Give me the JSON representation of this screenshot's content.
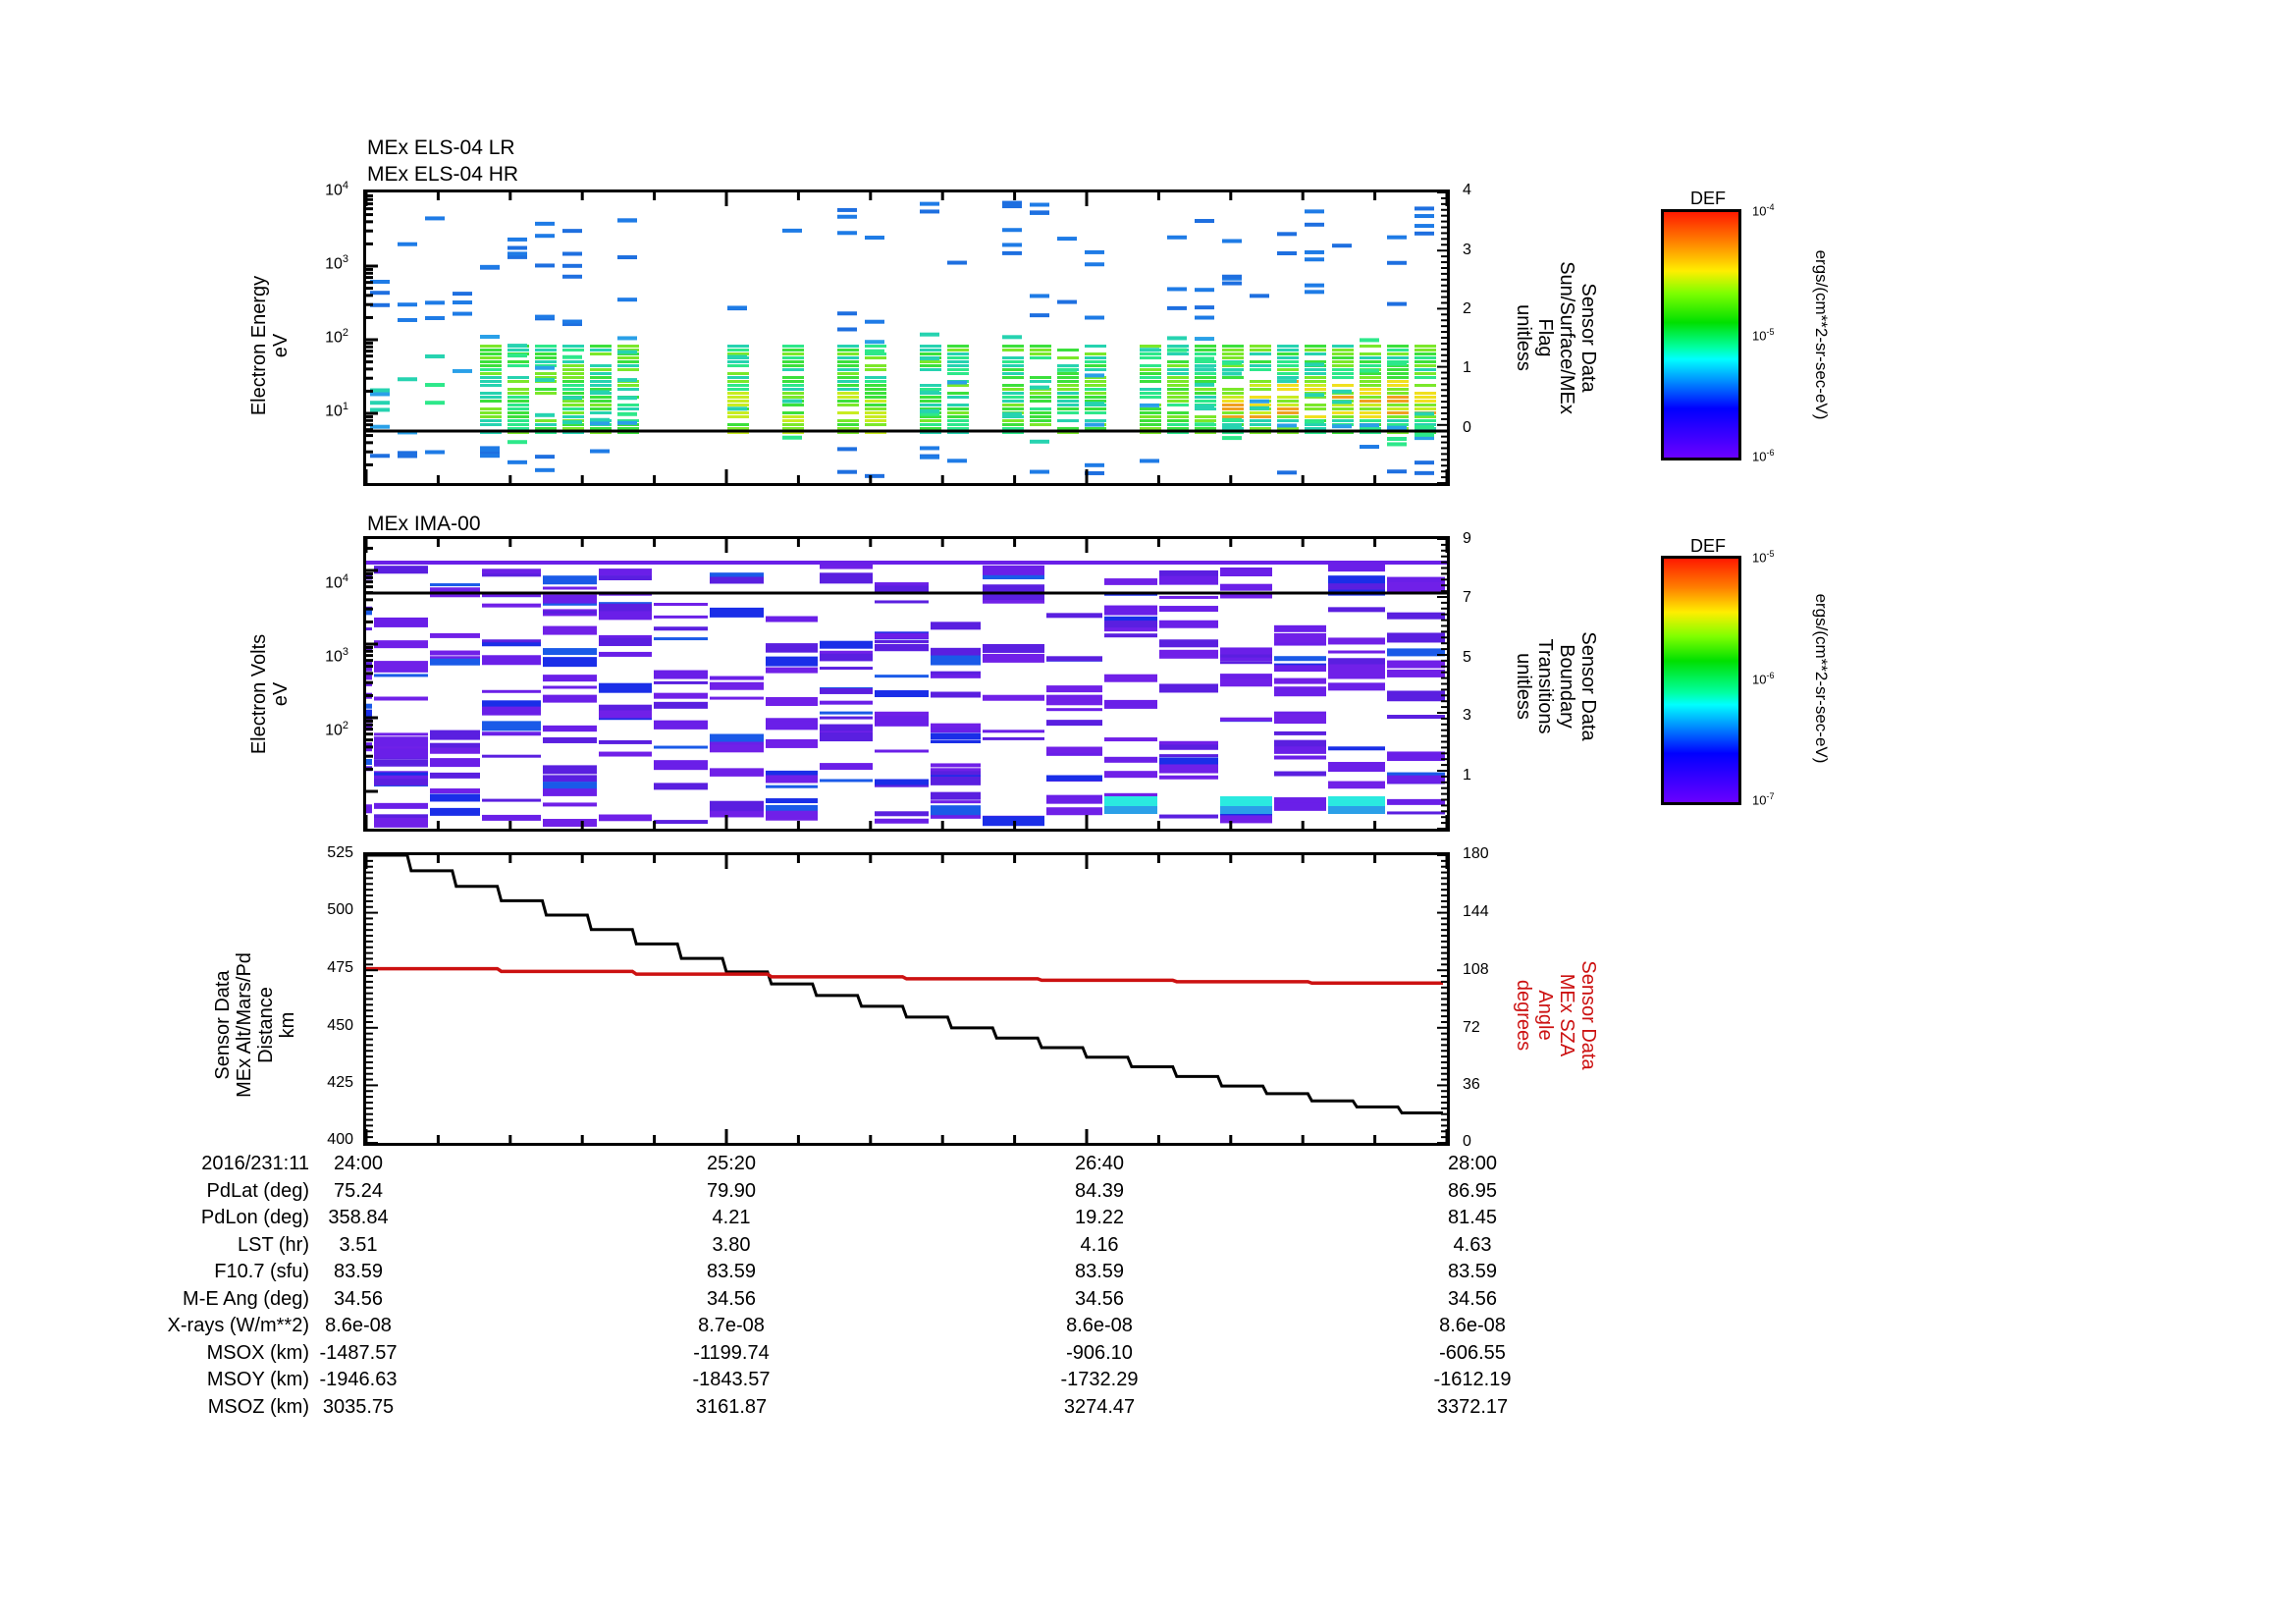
{
  "panels": {
    "els": {
      "title_lines": [
        "MEx ELS-04 LR",
        "MEx ELS-04 HR"
      ],
      "ylabel_lines": [
        "Electron Energy",
        "eV"
      ],
      "yticks": [
        "10^4",
        "10^3",
        "10^2",
        "10^1"
      ],
      "right_ylabel_lines": [
        "Sensor Data",
        "Sun/Surface/MEx",
        "Flag",
        "unitless"
      ],
      "right_yticks": [
        "4",
        "3",
        "2",
        "1",
        "0"
      ],
      "colorbar": {
        "title": "DEF",
        "ticks": [
          "10^-4",
          "10^-5",
          "10^-6"
        ],
        "unit": "ergs/(cm**2-sr-sec-eV)"
      }
    },
    "ima": {
      "title": "MEx IMA-00",
      "ylabel_lines": [
        "Electron Volts",
        "eV"
      ],
      "yticks": [
        "10^4",
        "10^3",
        "10^2"
      ],
      "right_ylabel_lines": [
        "Sensor Data",
        "Boundary",
        "Transitions",
        "unitless"
      ],
      "right_yticks": [
        "9",
        "7",
        "5",
        "3",
        "1"
      ],
      "colorbar": {
        "title": "DEF",
        "ticks": [
          "10^-5",
          "10^-6",
          "10^-7"
        ],
        "unit": "ergs/(cm**2-sr-sec-eV)"
      }
    },
    "alt": {
      "ylabel_lines": [
        "Sensor Data",
        "MEx Alt/Mars/Pd",
        "Distance",
        "km"
      ],
      "yticks": [
        "525",
        "500",
        "475",
        "450",
        "425",
        "400"
      ],
      "right_ylabel_lines": [
        "Sensor Data",
        "MEx SZA",
        "Angle",
        "degrees"
      ],
      "right_yticks": [
        "180",
        "144",
        "108",
        "72",
        "36",
        "0"
      ],
      "right_label_color": "#cc1111"
    }
  },
  "ephemeris": {
    "rows": [
      {
        "label": "2016/231:11",
        "values": [
          "24:00",
          "25:20",
          "26:40",
          "28:00"
        ]
      },
      {
        "label": "PdLat (deg)",
        "values": [
          "75.24",
          "79.90",
          "84.39",
          "86.95"
        ]
      },
      {
        "label": "PdLon (deg)",
        "values": [
          "358.84",
          "4.21",
          "19.22",
          "81.45"
        ]
      },
      {
        "label": "LST (hr)",
        "values": [
          "3.51",
          "3.80",
          "4.16",
          "4.63"
        ]
      },
      {
        "label": "F10.7 (sfu)",
        "values": [
          "83.59",
          "83.59",
          "83.59",
          "83.59"
        ]
      },
      {
        "label": "M-E Ang (deg)",
        "values": [
          "34.56",
          "34.56",
          "34.56",
          "34.56"
        ]
      },
      {
        "label": "X-rays (W/m**2)",
        "values": [
          "8.6e-08",
          "8.7e-08",
          "8.6e-08",
          "8.6e-08"
        ]
      },
      {
        "label": "MSOX (km)",
        "values": [
          "-1487.57",
          "-1199.74",
          "-906.10",
          "-606.55"
        ]
      },
      {
        "label": "MSOY (km)",
        "values": [
          "-1946.63",
          "-1843.57",
          "-1732.29",
          "-1612.19"
        ]
      },
      {
        "label": "MSOZ (km)",
        "values": [
          "3035.75",
          "3161.87",
          "3274.47",
          "3372.17"
        ]
      }
    ]
  },
  "chart_data": [
    {
      "type": "heatmap",
      "title": "MEx ELS-04 LR / MEx ELS-04 HR",
      "xlabel": "2016/231:11",
      "x_ticks": [
        "24:00",
        "25:20",
        "26:40",
        "28:00"
      ],
      "ylabel": "Electron Energy (eV)",
      "yscale": "log",
      "ylim": [
        1,
        10000
      ],
      "colorbar": {
        "label": "DEF ergs/(cm**2-sr-sec-eV)",
        "range": [
          1e-06,
          0.0001
        ],
        "scale": "log"
      },
      "overlay": {
        "name": "Sensor Data Sun/Surface/MEx Flag (unitless)",
        "right_ylim": [
          -1,
          4
        ],
        "value": 0
      },
      "description": "Sparse electron spectra; densest 5-60 eV (green to yellow, peak ~orange ~10 eV near end), scattered blue bins up to ~7000 eV"
    },
    {
      "type": "heatmap",
      "title": "MEx IMA-00",
      "xlabel": "2016/231:11",
      "x_ticks": [
        "24:00",
        "25:20",
        "26:40",
        "28:00"
      ],
      "ylabel": "Electron Volts (eV)",
      "yscale": "log",
      "ylim": [
        10,
        30000
      ],
      "colorbar": {
        "label": "DEF ergs/(cm**2-sr-sec-eV)",
        "range": [
          1e-07,
          1e-05
        ],
        "scale": "log"
      },
      "overlay": {
        "name": "Sensor Data Boundary Transitions (unitless)",
        "right_ylim": [
          -1,
          9
        ],
        "value": 7
      },
      "description": "Low-level (violet/blue) horizontal bands across all energies; cyan bins near lowest energies late in interval"
    },
    {
      "type": "line",
      "xlabel": "2016/231:11",
      "x": [
        "24:00",
        "24:20",
        "24:40",
        "25:00",
        "25:20",
        "25:40",
        "26:00",
        "26:20",
        "26:40",
        "27:00",
        "27:20",
        "27:40",
        "28:00"
      ],
      "series": [
        {
          "name": "MEx Alt/Mars/Pd Distance (km)",
          "axis": "left",
          "color": "#000000",
          "values": [
            525,
            512,
            500,
            488,
            476,
            466,
            457,
            448,
            440,
            432,
            424,
            418,
            413
          ]
        },
        {
          "name": "MEx SZA Angle (degrees)",
          "axis": "right",
          "color": "#cc1111",
          "values": [
            109,
            108,
            107,
            106,
            105,
            104,
            103.5,
            102.5,
            102,
            101.5,
            101,
            100.5,
            100
          ]
        }
      ],
      "ylabel": "Sensor Data MEx Alt/Mars/Pd Distance km",
      "ylim": [
        400,
        525
      ],
      "right_ylabel": "Sensor Data MEx SZA Angle degrees",
      "right_ylim": [
        0,
        180
      ]
    }
  ]
}
